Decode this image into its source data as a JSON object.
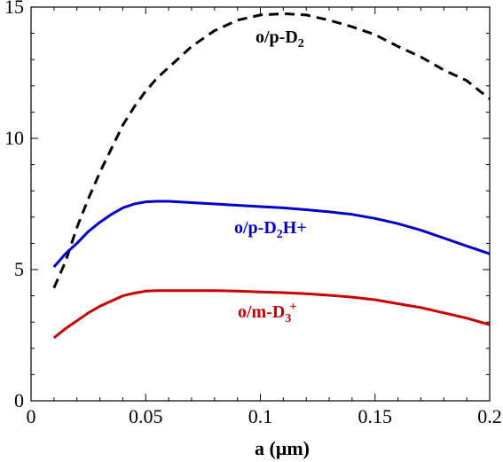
{
  "chart_data": {
    "type": "line",
    "title": "",
    "xlabel": "a (μm)",
    "ylabel": "",
    "xlim": [
      0,
      0.2
    ],
    "ylim": [
      0,
      15
    ],
    "xticks": [
      0,
      0.05,
      0.1,
      0.15,
      0.2
    ],
    "xtick_labels": [
      "0",
      "0.05",
      "0.1",
      "0.15",
      "0.2"
    ],
    "yticks": [
      0,
      5,
      10,
      15
    ],
    "ytick_labels": [
      "0",
      "5",
      "10",
      "15"
    ],
    "grid": false,
    "legend": "none",
    "series": [
      {
        "label_main": "o/p-D",
        "label_sub": "2",
        "label_tail": "",
        "label_sup": "",
        "color": "#000000",
        "dash": true,
        "x": [
          0.01,
          0.015,
          0.02,
          0.025,
          0.03,
          0.035,
          0.04,
          0.045,
          0.05,
          0.055,
          0.06,
          0.07,
          0.08,
          0.09,
          0.1,
          0.11,
          0.12,
          0.13,
          0.14,
          0.15,
          0.16,
          0.17,
          0.18,
          0.19,
          0.2
        ],
        "y": [
          4.3,
          5.3,
          6.6,
          7.7,
          8.7,
          9.6,
          10.5,
          11.2,
          11.8,
          12.3,
          12.7,
          13.5,
          14.1,
          14.5,
          14.7,
          14.75,
          14.7,
          14.5,
          14.25,
          13.95,
          13.5,
          13.1,
          12.6,
          12.2,
          11.5
        ]
      },
      {
        "label_main": "o/p-D",
        "label_sub": "2",
        "label_tail": "H+",
        "label_sup": "",
        "color": "#0000cc",
        "dash": false,
        "x": [
          0.01,
          0.015,
          0.02,
          0.025,
          0.03,
          0.035,
          0.04,
          0.045,
          0.05,
          0.055,
          0.06,
          0.07,
          0.08,
          0.09,
          0.1,
          0.11,
          0.12,
          0.13,
          0.14,
          0.15,
          0.16,
          0.17,
          0.18,
          0.19,
          0.2
        ],
        "y": [
          5.1,
          5.6,
          6.0,
          6.45,
          6.8,
          7.1,
          7.35,
          7.5,
          7.58,
          7.6,
          7.6,
          7.55,
          7.5,
          7.45,
          7.4,
          7.35,
          7.28,
          7.2,
          7.1,
          6.95,
          6.75,
          6.5,
          6.2,
          5.9,
          5.6
        ]
      },
      {
        "label_main": "o/m-D",
        "label_sub": "3",
        "label_tail": "",
        "label_sup": "+",
        "color": "#cc0000",
        "dash": false,
        "x": [
          0.01,
          0.015,
          0.02,
          0.025,
          0.03,
          0.035,
          0.04,
          0.045,
          0.05,
          0.055,
          0.06,
          0.07,
          0.08,
          0.09,
          0.1,
          0.11,
          0.12,
          0.13,
          0.14,
          0.15,
          0.16,
          0.17,
          0.18,
          0.19,
          0.2
        ],
        "y": [
          2.4,
          2.75,
          3.05,
          3.35,
          3.6,
          3.8,
          4.0,
          4.1,
          4.18,
          4.2,
          4.2,
          4.2,
          4.2,
          4.18,
          4.15,
          4.12,
          4.08,
          4.02,
          3.95,
          3.85,
          3.7,
          3.55,
          3.35,
          3.15,
          2.9
        ]
      }
    ]
  }
}
